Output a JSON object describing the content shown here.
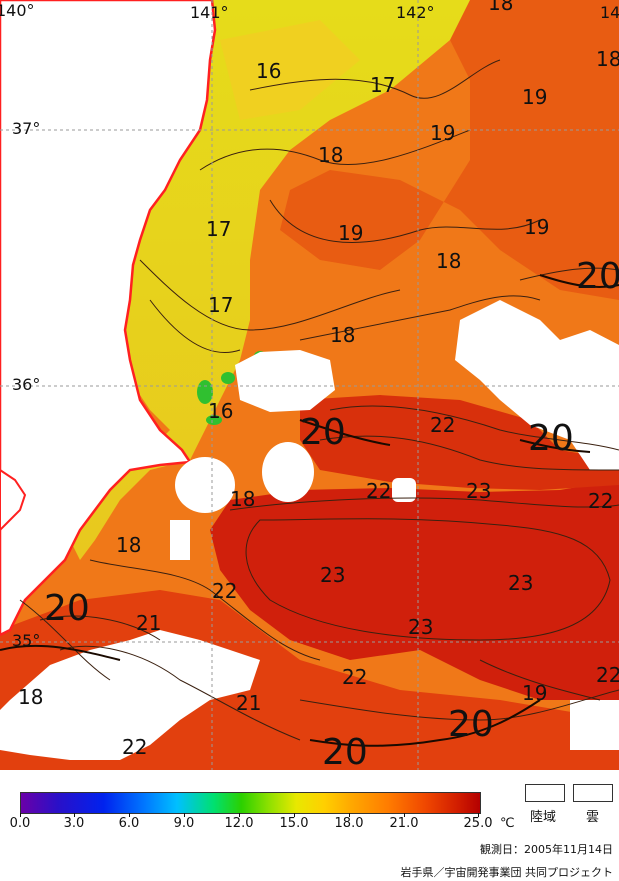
{
  "map": {
    "longitude_labels": [
      "140°",
      "141°",
      "142°",
      "14"
    ],
    "latitude_labels": [
      "37°",
      "36°",
      "35°"
    ],
    "isotherm_labels": [
      "16",
      "17",
      "18",
      "19",
      "19",
      "17",
      "18",
      "19",
      "19",
      "18",
      "18",
      "17",
      "20",
      "16",
      "20",
      "22",
      "20",
      "22",
      "18",
      "23",
      "22",
      "18",
      "23",
      "23",
      "20",
      "22",
      "21",
      "23",
      "22",
      "19",
      "22",
      "18",
      "21",
      "22",
      "20",
      "20",
      "18"
    ]
  },
  "legend": {
    "scale_labels": [
      "0.0",
      "3.0",
      "6.0",
      "9.0",
      "12.0",
      "15.0",
      "18.0",
      "21.0",
      "25.0"
    ],
    "unit": "℃",
    "land_label": "陸域",
    "cloud_label": "雲",
    "colors": {
      "land": "#ffffff",
      "cloud": "#ffffff",
      "coastline": "#ff2020",
      "min": "#6a00a8",
      "max": "#b40000"
    }
  },
  "footer": {
    "observation_date": "観測日：2005年11月14日",
    "credit": "岩手県／宇宙開発事業団 共同プロジェクト"
  }
}
